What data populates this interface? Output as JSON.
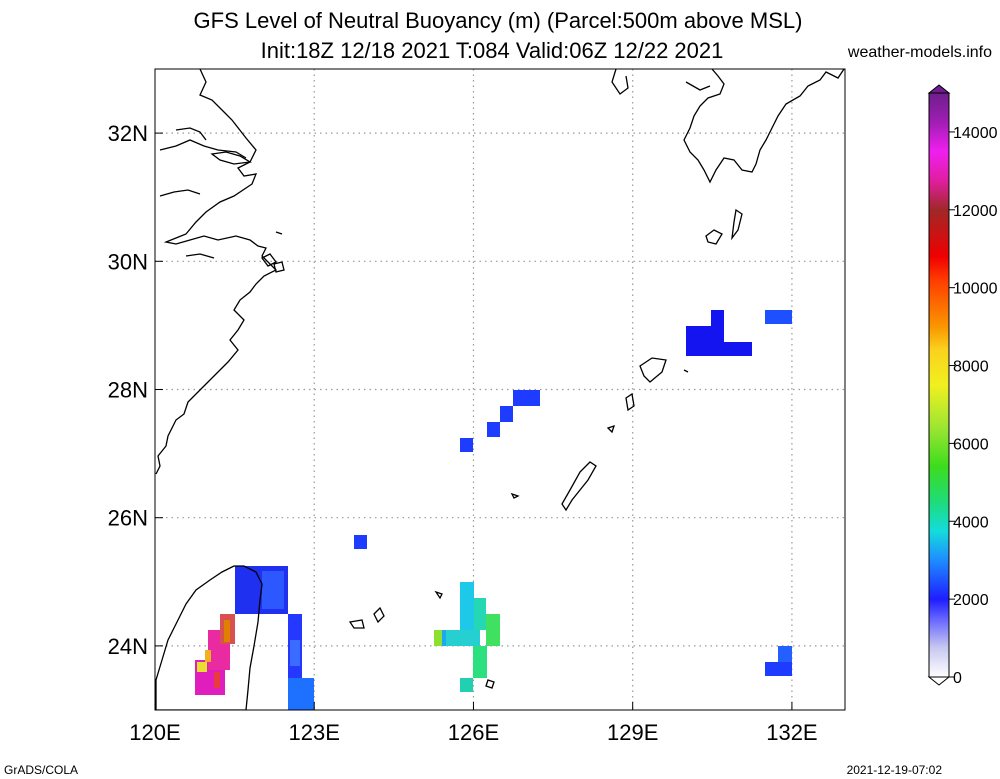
{
  "title": {
    "line1": "GFS Level of Neutral Buoyancy (m) (Parcel:500m above MSL)",
    "line2": "Init:18Z 12/18 2021 T:084 Valid:06Z 12/22 2021",
    "site": "weather-models.info"
  },
  "map": {
    "lon_range": [
      120,
      133
    ],
    "lat_range": [
      23,
      33
    ],
    "lon_ticks": [
      {
        "value": 120,
        "label": "120E"
      },
      {
        "value": 123,
        "label": "123E"
      },
      {
        "value": 126,
        "label": "126E"
      },
      {
        "value": 129,
        "label": "129E"
      },
      {
        "value": 132,
        "label": "132E"
      }
    ],
    "lat_ticks": [
      {
        "value": 32,
        "label": "32N"
      },
      {
        "value": 30,
        "label": "30N"
      },
      {
        "value": 28,
        "label": "28N"
      },
      {
        "value": 26,
        "label": "26N"
      },
      {
        "value": 24,
        "label": "24N"
      }
    ],
    "grid": "dotted",
    "coastlines": true
  },
  "colorbar": {
    "min": 0,
    "max": 15000,
    "ticks": [
      {
        "value": 0,
        "label": "0"
      },
      {
        "value": 2000,
        "label": "2000"
      },
      {
        "value": 4000,
        "label": "4000"
      },
      {
        "value": 6000,
        "label": "6000"
      },
      {
        "value": 8000,
        "label": "8000"
      },
      {
        "value": 10000,
        "label": "10000"
      },
      {
        "value": 12000,
        "label": "12000"
      },
      {
        "value": 14000,
        "label": "14000"
      }
    ]
  },
  "footer": {
    "left": "GrADS/COLA",
    "right": "2021-12-19-07:02"
  }
}
